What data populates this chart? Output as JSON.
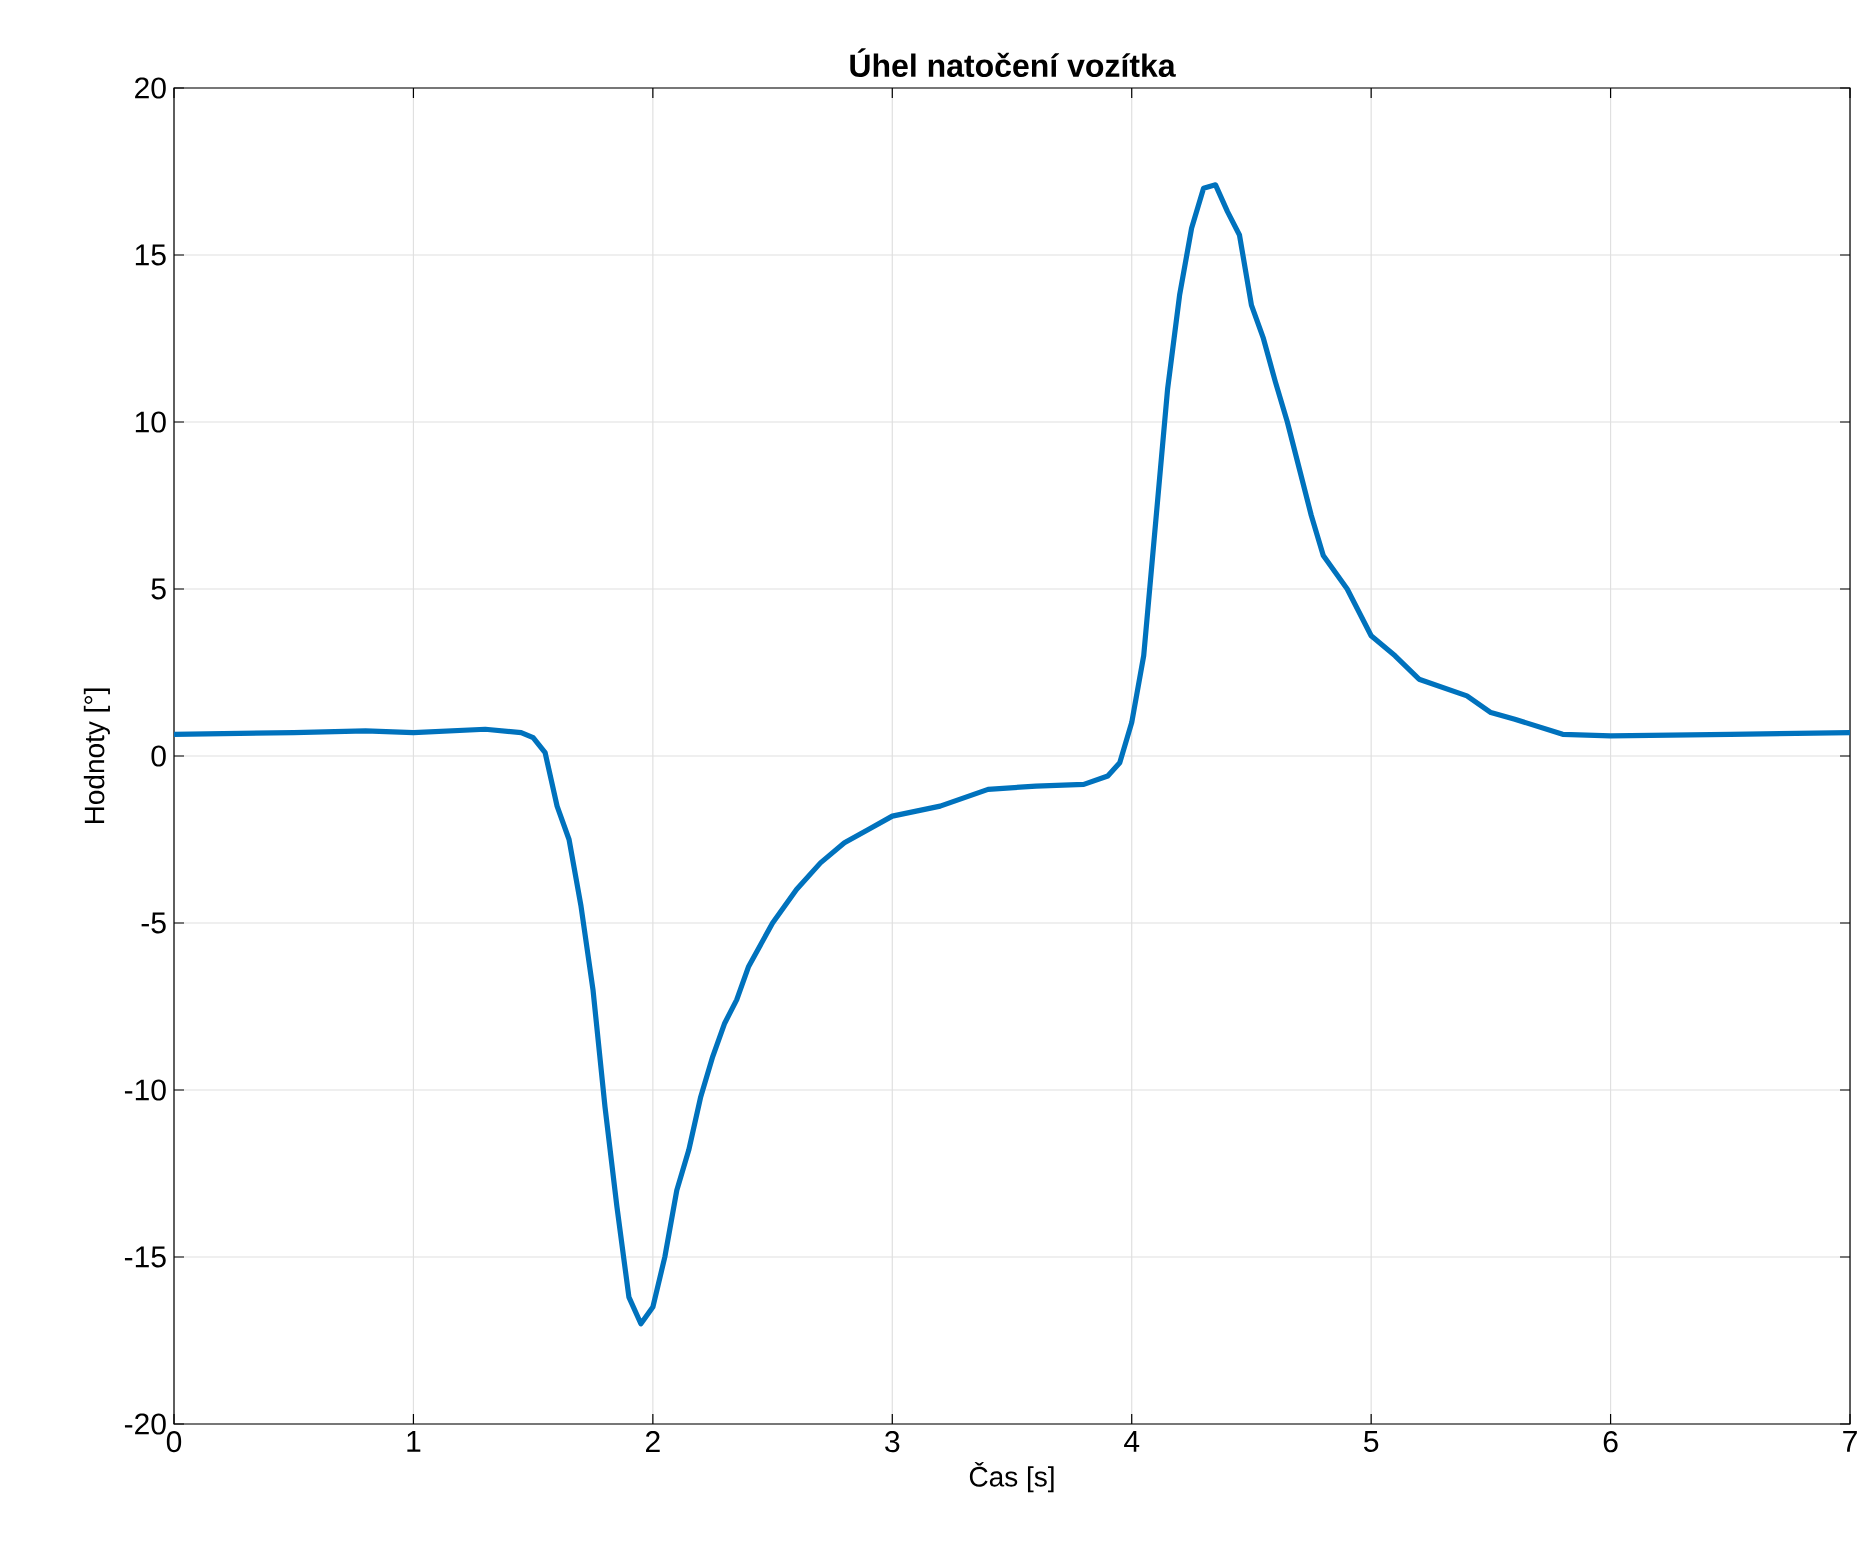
{
  "chart_data": {
    "type": "line",
    "title": "Úhel natočení vozítka",
    "xlabel": "Čas [s]",
    "ylabel": "Hodnoty [°]",
    "x": [
      0,
      0.5,
      0.8,
      1.0,
      1.3,
      1.45,
      1.5,
      1.55,
      1.6,
      1.65,
      1.7,
      1.75,
      1.8,
      1.85,
      1.9,
      1.95,
      2.0,
      2.05,
      2.1,
      2.15,
      2.2,
      2.25,
      2.3,
      2.35,
      2.4,
      2.5,
      2.6,
      2.7,
      2.8,
      2.9,
      3.0,
      3.2,
      3.4,
      3.6,
      3.8,
      3.9,
      3.95,
      4.0,
      4.05,
      4.1,
      4.15,
      4.2,
      4.25,
      4.3,
      4.35,
      4.4,
      4.45,
      4.5,
      4.55,
      4.6,
      4.65,
      4.7,
      4.75,
      4.8,
      4.9,
      5.0,
      5.1,
      5.2,
      5.4,
      5.5,
      5.6,
      5.8,
      6.0,
      6.5,
      7.0
    ],
    "series": [
      {
        "color": "#0072bd",
        "values": [
          0.65,
          0.7,
          0.75,
          0.7,
          0.8,
          0.7,
          0.55,
          0.1,
          -1.5,
          -2.5,
          -4.5,
          -7,
          -10.5,
          -13.5,
          -16.2,
          -17,
          -16.5,
          -15,
          -13,
          -11.8,
          -10.2,
          -9,
          -8,
          -7.3,
          -6.3,
          -5,
          -4,
          -3.2,
          -2.6,
          -2.2,
          -1.8,
          -1.5,
          -1.0,
          -0.9,
          -0.85,
          -0.6,
          -0.2,
          1.0,
          3,
          7,
          11,
          13.8,
          15.8,
          17,
          17.1,
          16.3,
          15.6,
          13.5,
          12.5,
          11.2,
          10,
          8.6,
          7.2,
          6.0,
          5.0,
          3.6,
          3.0,
          2.3,
          1.8,
          1.3,
          1.1,
          0.65,
          0.6,
          0.65,
          0.7
        ]
      }
    ],
    "xlim": [
      0,
      7
    ],
    "ylim": [
      -20,
      20
    ],
    "xticks": [
      0,
      1,
      2,
      3,
      4,
      5,
      6,
      7
    ],
    "yticks": [
      -20,
      -15,
      -10,
      -5,
      0,
      5,
      10,
      15,
      20
    ],
    "grid": true,
    "marker": "none",
    "line_style": "solid"
  }
}
